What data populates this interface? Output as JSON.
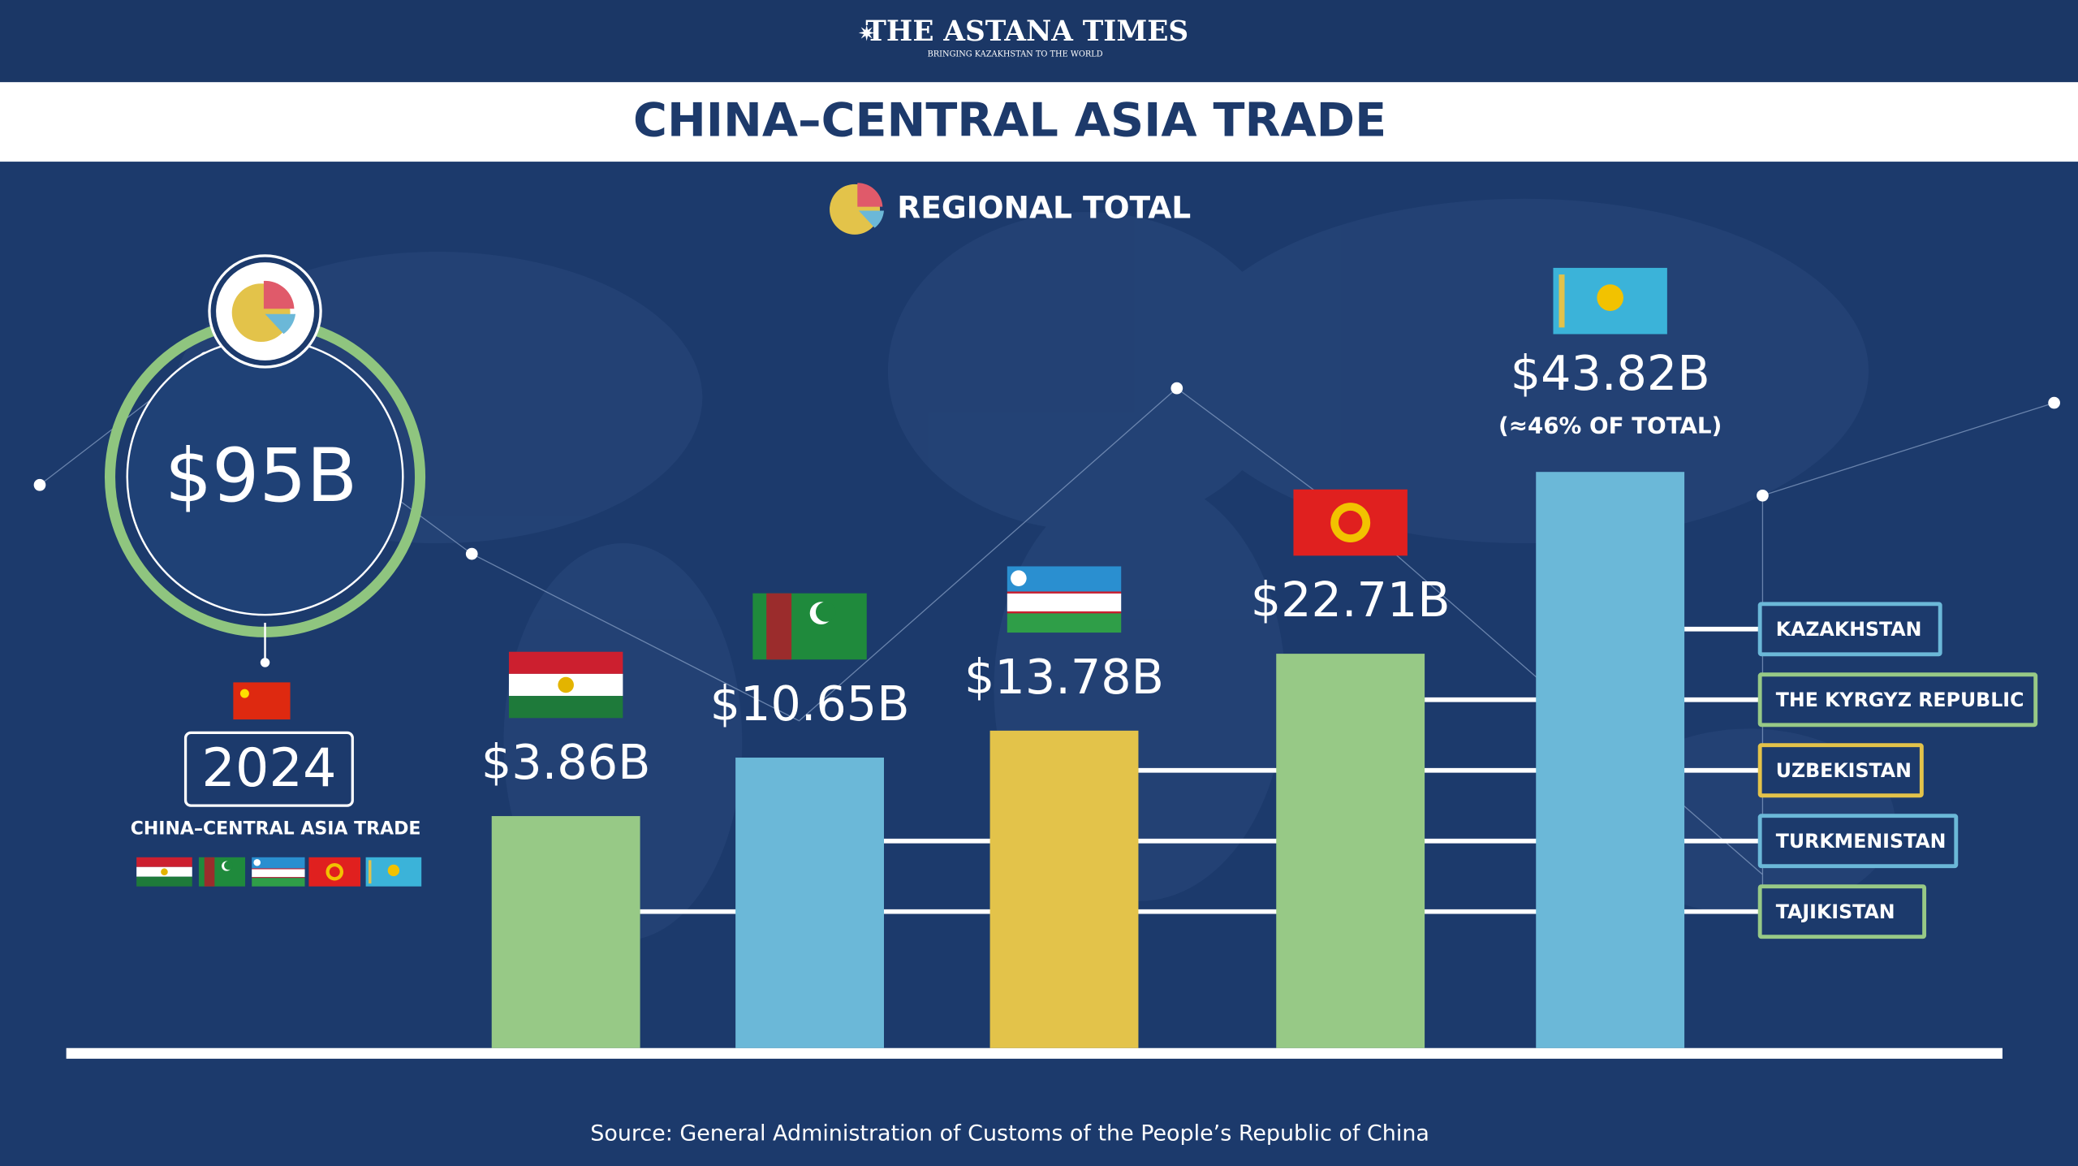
{
  "header": {
    "title": "THE ASTANA TIMES",
    "tagline": "BRINGING KAZAKHSTAN TO THE WORLD"
  },
  "chart_data": {
    "type": "bar",
    "title": "CHINA–CENTRAL ASIA TRADE",
    "subtitle": "REGIONAL TOTAL",
    "total": {
      "value": 95,
      "label": "$95B",
      "year": "2024",
      "caption": "CHINA–CENTRAL ASIA TRADE"
    },
    "series": [
      {
        "name": "TAJIKISTAN",
        "color": "#97c986",
        "values": [
          3.86
        ],
        "value_labels": [
          "$3.86B"
        ]
      },
      {
        "name": "TURKMENISTAN",
        "color": "#6bb8d8",
        "values": [
          10.65
        ],
        "value_labels": [
          "$10.65B"
        ]
      },
      {
        "name": "UZBEKISTAN",
        "color": "#e3c34a",
        "values": [
          13.78
        ],
        "value_labels": [
          "$13.78B"
        ]
      },
      {
        "name": "THE KYRGYZ REPUBLIC",
        "color": "#97c986",
        "values": [
          22.71
        ],
        "value_labels": [
          "$22.71B"
        ]
      },
      {
        "name": "KAZAKHSTAN",
        "color": "#6bb8d8",
        "values": [
          43.82
        ],
        "value_labels": [
          "$43.82B"
        ]
      }
    ],
    "annotation": "(≈46% OF TOTAL)",
    "source": "Source: General Administration of Customs of the People’s Republic of China"
  }
}
